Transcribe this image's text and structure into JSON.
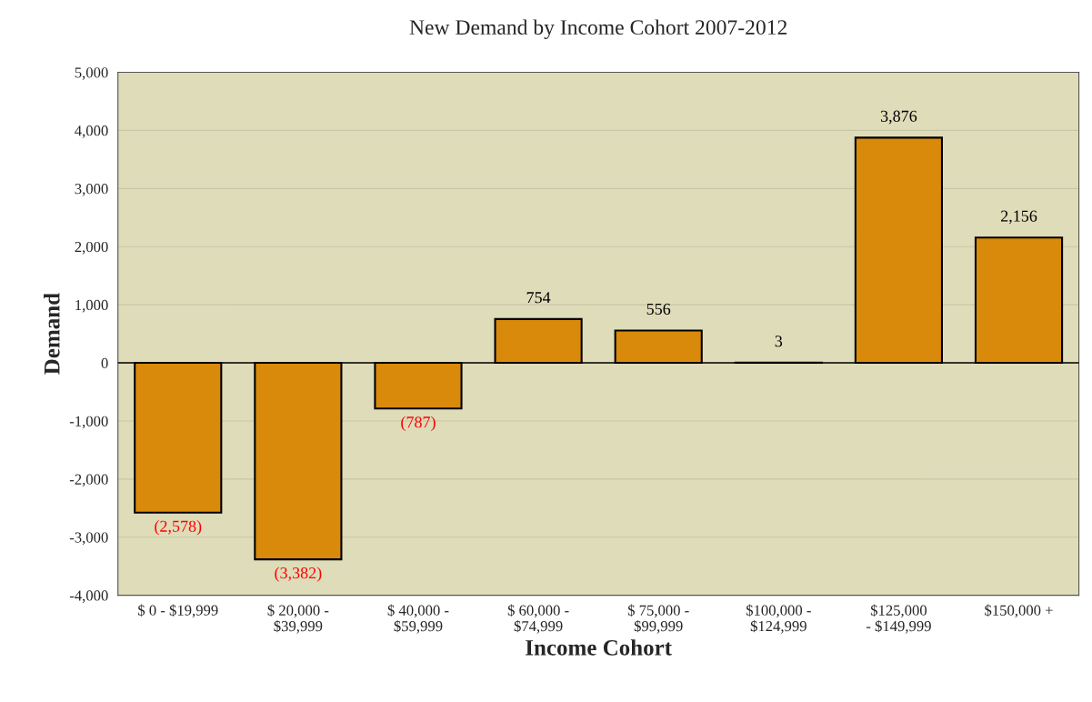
{
  "chart_data": {
    "type": "bar",
    "title": "New Demand by Income Cohort 2007-2012",
    "xlabel": "Income Cohort",
    "ylabel": "Demand",
    "categories": [
      "$ 0 - $19,999",
      "$ 20,000 -\n$39,999",
      "$ 40,000 -\n$59,999",
      "$ 60,000 -\n$74,999",
      "$ 75,000 -\n$99,999",
      "$100,000 -\n$124,999",
      "$125,000\n- $149,999",
      "$150,000 +"
    ],
    "values": [
      -2578,
      -3382,
      -787,
      754,
      556,
      3,
      3876,
      2156
    ],
    "value_labels": [
      "(2,578)",
      "(3,382)",
      "(787)",
      "754",
      "556",
      "3",
      "3,876",
      "2,156"
    ],
    "color": "#d98a0a",
    "ylim": [
      -4000,
      5000
    ],
    "yticks": [
      {
        "value": -4000,
        "label": "-4,000"
      },
      {
        "value": -3000,
        "label": "-3,000"
      },
      {
        "value": -2000,
        "label": "-2,000"
      },
      {
        "value": -1000,
        "label": "-1,000"
      },
      0,
      {
        "value": 1000,
        "label": "1,000"
      },
      {
        "value": 2000,
        "label": "2,000"
      },
      {
        "value": 3000,
        "label": "3,000"
      },
      {
        "value": 4000,
        "label": "4,000"
      },
      {
        "value": 5000,
        "label": "5,000"
      }
    ],
    "grid": "y"
  }
}
